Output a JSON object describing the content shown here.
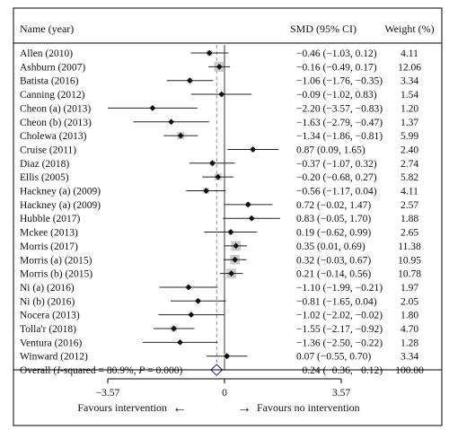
{
  "chart_data": {
    "type": "forest",
    "columns": {
      "name": "Name (year)",
      "effect": "SMD (95% CI)",
      "weight": "Weight (%)"
    },
    "studies": [
      {
        "label": "Allen (2010)",
        "ci_text": "−0.46 (−1.03, 0.12)",
        "weight": "4.11",
        "smd": -0.46,
        "lo": -1.03,
        "hi": 0.12
      },
      {
        "label": "Ashburn (2007)",
        "ci_text": "−0.16 (−0.49, 0.17)",
        "weight": "12.06",
        "smd": -0.16,
        "lo": -0.49,
        "hi": 0.17
      },
      {
        "label": "Batista (2016)",
        "ci_text": "−1.06 (−1.76, −0.35)",
        "weight": "3.34",
        "smd": -1.06,
        "lo": -1.76,
        "hi": -0.35
      },
      {
        "label": "Canning (2012)",
        "ci_text": "−0.09 (−1.02, 0.83)",
        "weight": "1.54",
        "smd": -0.09,
        "lo": -1.02,
        "hi": 0.83
      },
      {
        "label": "Cheon (a) (2013)",
        "ci_text": "−2.20 (−3.57, −0.83)",
        "weight": "1.20",
        "smd": -2.2,
        "lo": -3.57,
        "hi": -0.83
      },
      {
        "label": "Cheon (b) (2013)",
        "ci_text": "−1.63 (−2.79, −0.47)",
        "weight": "1.37",
        "smd": -1.63,
        "lo": -2.79,
        "hi": -0.47
      },
      {
        "label": "Cholewa (2013)",
        "ci_text": "−1.34 (−1.86, −0.81)",
        "weight": "5.99",
        "smd": -1.34,
        "lo": -1.86,
        "hi": -0.81
      },
      {
        "label": "Cruise (2011)",
        "ci_text": "0.87 (0.09, 1.65)",
        "weight": "2.40",
        "smd": 0.87,
        "lo": 0.09,
        "hi": 1.65
      },
      {
        "label": "Diaz (2018)",
        "ci_text": "−0.37 (−1.07, 0.32)",
        "weight": "2.74",
        "smd": -0.37,
        "lo": -1.07,
        "hi": 0.32
      },
      {
        "label": "Ellis (2005)",
        "ci_text": "−0.20 (−0.68, 0.27)",
        "weight": "5.82",
        "smd": -0.2,
        "lo": -0.68,
        "hi": 0.27
      },
      {
        "label": "Hackney (a) (2009)",
        "ci_text": "−0.56 (−1.17, 0.04)",
        "weight": "4.11",
        "smd": -0.56,
        "lo": -1.17,
        "hi": 0.04
      },
      {
        "label": "Hackney (a) (2009)",
        "ci_text": "0.72 (−0.02, 1.47)",
        "weight": "2.57",
        "smd": 0.72,
        "lo": -0.02,
        "hi": 1.47
      },
      {
        "label": "Hubble (2017)",
        "ci_text": "0.83 (−0.05, 1.70)",
        "weight": "1.88",
        "smd": 0.83,
        "lo": -0.05,
        "hi": 1.7
      },
      {
        "label": "Mckee (2013)",
        "ci_text": "0.19 (−0.62, 0.99)",
        "weight": "2.65",
        "smd": 0.19,
        "lo": -0.62,
        "hi": 0.99
      },
      {
        "label": "Morris (2017)",
        "ci_text": "0.35 (0.01, 0.69)",
        "weight": "11.38",
        "smd": 0.35,
        "lo": 0.01,
        "hi": 0.69
      },
      {
        "label": "Morris (a) (2015)",
        "ci_text": "0.32 (−0.03, 0.67)",
        "weight": "10.95",
        "smd": 0.32,
        "lo": -0.03,
        "hi": 0.67
      },
      {
        "label": "Morris (b) (2015)",
        "ci_text": "0.21 (−0.14, 0.56)",
        "weight": "10.78",
        "smd": 0.21,
        "lo": -0.14,
        "hi": 0.56
      },
      {
        "label": "Ni (a) (2016)",
        "ci_text": "−1.10 (−1.99, −0.21)",
        "weight": "1.97",
        "smd": -1.1,
        "lo": -1.99,
        "hi": -0.21
      },
      {
        "label": "Ni (b) (2016)",
        "ci_text": "−0.81 (−1.65, 0.04)",
        "weight": "2.05",
        "smd": -0.81,
        "lo": -1.65,
        "hi": 0.04
      },
      {
        "label": "Nocera (2013)",
        "ci_text": "−1.02 (−2.02, −0.02)",
        "weight": "1.80",
        "smd": -1.02,
        "lo": -2.02,
        "hi": -0.02
      },
      {
        "label": "Tolla'r (2018)",
        "ci_text": "−1.55 (−2.17, −0.92)",
        "weight": "4.70",
        "smd": -1.55,
        "lo": -2.17,
        "hi": -0.92
      },
      {
        "label": "Ventura (2016)",
        "ci_text": "−1.36 (−2.50, −0.22)",
        "weight": "1.28",
        "smd": -1.36,
        "lo": -2.5,
        "hi": -0.22
      },
      {
        "label": "Winward (2012)",
        "ci_text": "0.07 (−0.55, 0.70)",
        "weight": "3.34",
        "smd": 0.07,
        "lo": -0.55,
        "hi": 0.7
      }
    ],
    "overall": {
      "label_prefix": "Overall (",
      "label_italic": "I",
      "label_suffix": "-squared = 80.9%, ",
      "label_p": "P",
      "label_end": " = 0.000)",
      "ci_text": "−0.24 (−0.36, −0.12)",
      "weight": "100.00",
      "smd": -0.24,
      "lo": -0.36,
      "hi": -0.12
    },
    "x_ticks": [
      {
        "value": -3.57,
        "label": "−3.57"
      },
      {
        "value": 0,
        "label": "0"
      },
      {
        "value": 3.57,
        "label": "3.57"
      }
    ],
    "xlim": [
      -3.57,
      3.57
    ],
    "favours_left": "Favours intervention",
    "favours_right": "Favours no intervention",
    "arrow_left": "←",
    "arrow_right": "→",
    "colors": {
      "box": "#c9c9c9",
      "point": "#111111",
      "ci_line": "#222222",
      "null_line": "#333333",
      "overall_line": "#c77777",
      "diamond": "#4a3aa8"
    }
  }
}
